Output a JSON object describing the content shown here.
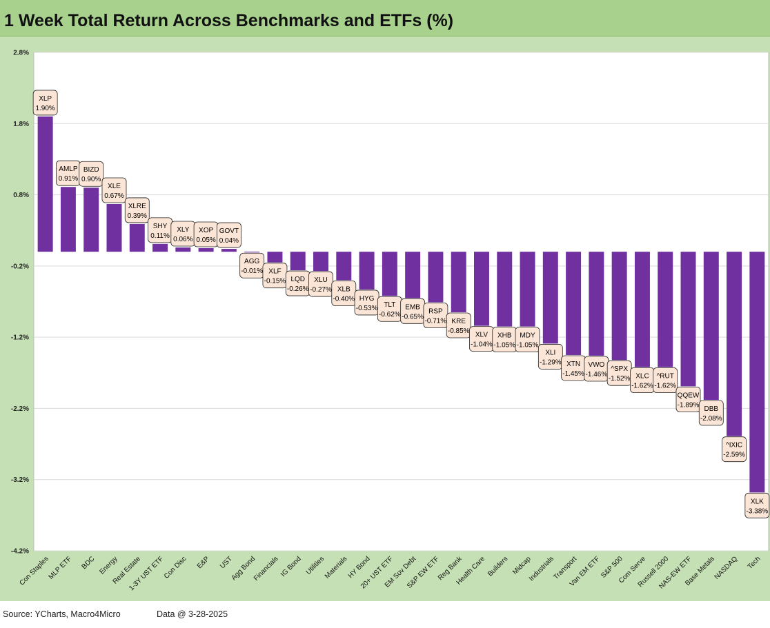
{
  "title": "1 Week Total Return Across Benchmarks and ETFs (%)",
  "footer": {
    "source": "Source: YCharts, Macro4Micro",
    "data_date": "Data @ 3-28-2025"
  },
  "colors": {
    "title_band": "#a9d18e",
    "chart_background": "#c5e0b4",
    "plot_background": "#ffffff",
    "bar": "#7030a0",
    "label_fill": "#fbe5d6"
  },
  "chart_data": {
    "type": "bar",
    "title": "1 Week Total Return Across Benchmarks and ETFs (%)",
    "xlabel": "",
    "ylabel": "",
    "ylim": [
      -4.2,
      2.8
    ],
    "yticks": [
      "2.8%",
      "1.8%",
      "0.8%",
      "-0.2%",
      "-1.2%",
      "-2.2%",
      "-3.2%",
      "-4.2%"
    ],
    "ytick_values": [
      2.8,
      1.8,
      0.8,
      -0.2,
      -1.2,
      -2.2,
      -3.2,
      -4.2
    ],
    "grid": true,
    "categories": [
      "Con Staples",
      "MLP ETF",
      "BDC",
      "Energy",
      "Real Estate",
      "1-3Y UST ETF",
      "Con Disc",
      "E&P",
      "UST",
      "Agg Bond",
      "Financials",
      "IG Bond",
      "Utilities",
      "Materials",
      "HY Bond",
      "20+ UST ETF",
      "EM Sov Debt",
      "S&P EW ETF",
      "Reg Bank",
      "Health Care",
      "Builders",
      "Midcap",
      "Industrials",
      "Transport",
      "Van EM ETF",
      "S&P 500",
      "Com Serve",
      "Russell 2000",
      "NAS-EW ETF",
      "Base Metals",
      "NASDAQ",
      "Tech"
    ],
    "tickers": [
      "XLP",
      "AMLP",
      "BIZD",
      "XLE",
      "XLRE",
      "SHY",
      "XLY",
      "XOP",
      "GOVT",
      "AGG",
      "XLF",
      "LQD",
      "XLU",
      "XLB",
      "HYG",
      "TLT",
      "EMB",
      "RSP",
      "KRE",
      "XLV",
      "XHB",
      "MDY",
      "XLI",
      "XTN",
      "VWO",
      "^SPX",
      "XLC",
      "^RUT",
      "QQEW",
      "DBB",
      "^IXIC",
      "XLK"
    ],
    "values": [
      1.9,
      0.91,
      0.9,
      0.67,
      0.39,
      0.11,
      0.06,
      0.05,
      0.04,
      -0.01,
      -0.15,
      -0.26,
      -0.27,
      -0.4,
      -0.53,
      -0.62,
      -0.65,
      -0.71,
      -0.85,
      -1.04,
      -1.05,
      -1.05,
      -1.29,
      -1.45,
      -1.46,
      -1.52,
      -1.62,
      -1.62,
      -1.89,
      -2.08,
      -2.59,
      -3.38
    ],
    "data_labels": [
      "XLP\n1.90%",
      "AMLP\n0.91%",
      "BIZD\n0.90%",
      "XLE\n0.67%",
      "XLRE\n0.39%",
      "SHY\n0.11%",
      "XLY\n0.06%",
      "XOP\n0.05%",
      "GOVT\n0.04%",
      "AGG\n-0.01%",
      "XLF\n-0.15%",
      "LQD\n-0.26%",
      "XLU\n-0.27%",
      "XLB\n-0.40%",
      "HYG\n-0.53%",
      "TLT\n-0.62%",
      "EMB\n-0.65%",
      "RSP\n-0.71%",
      "KRE\n-0.85%",
      "XLV\n-1.04%",
      "XHB\n-1.05%",
      "MDY\n-1.05%",
      "XLI\n-1.29%",
      "XTN\n-1.45%",
      "VWO\n-1.46%",
      "^SPX\n-1.52%",
      "XLC\n-1.62%",
      "^RUT\n-1.62%",
      "QQEW\n-1.89%",
      "DBB\n-2.08%",
      "^IXIC\n-2.59%",
      "XLK\n-3.38%"
    ]
  }
}
